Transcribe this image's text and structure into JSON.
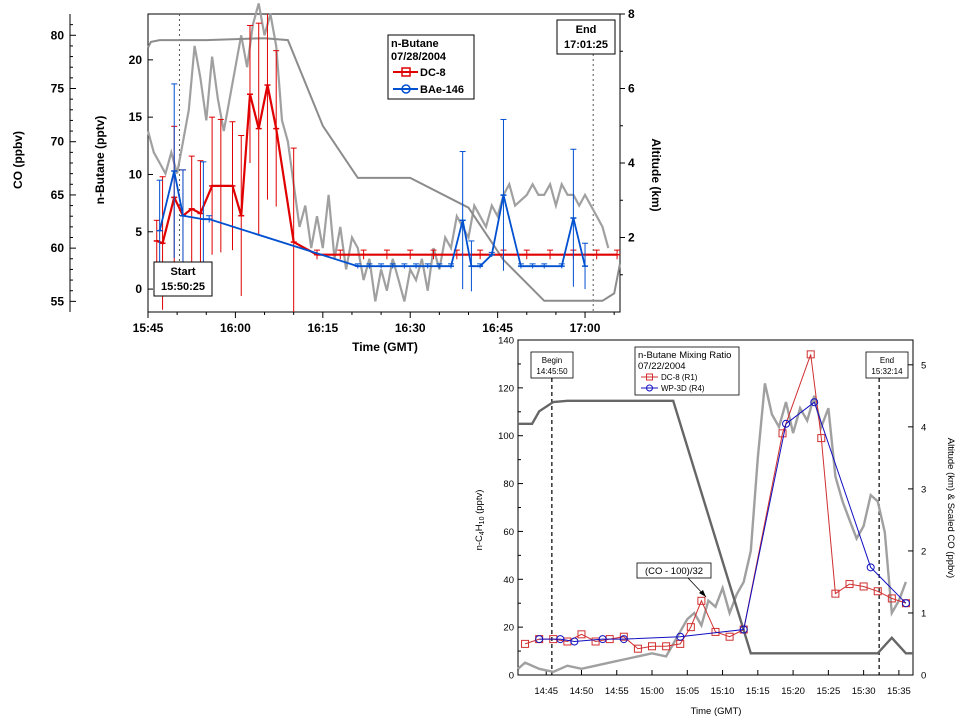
{
  "chart_data": [
    {
      "type": "line",
      "legend": {
        "title": "n-Butane",
        "date": "07/28/2004",
        "entries": [
          {
            "name": "DC-8",
            "color": "#e00000",
            "marker": "square"
          },
          {
            "name": "BAe-146",
            "color": "#0050d0",
            "marker": "circle"
          }
        ]
      },
      "xlabel": "Time (GMT)",
      "ylabel_left_outer": "CO (ppbv)",
      "ylabel_left": "n-Butane (pptv)",
      "ylabel_right": "Altitude (km)",
      "x_ticks": [
        "15:45",
        "16:00",
        "16:15",
        "16:30",
        "16:45",
        "17:00"
      ],
      "y_ticks_butane": [
        0,
        5,
        10,
        15,
        20
      ],
      "y_ticks_co": [
        55,
        60,
        65,
        70,
        75,
        80
      ],
      "y_ticks_alt": [
        2,
        4,
        6,
        8
      ],
      "xlim_min": [
        945,
        1026
      ],
      "ylim_butane": [
        -2,
        24
      ],
      "ylim_co": [
        54,
        82
      ],
      "ylim_alt": [
        0,
        8
      ],
      "annotation_start": {
        "label": "Start",
        "time": "15:50:25"
      },
      "annotation_end": {
        "label": "End",
        "time": "17:01:25"
      },
      "start_min": 950.4,
      "end_min": 1021.4,
      "series": [
        {
          "name": "DC-8",
          "color": "#e00000",
          "x": [
            946.5,
            947.5,
            949.5,
            951,
            952.5,
            954,
            956,
            957.5,
            959.5,
            961,
            962.5,
            964,
            965.5,
            967,
            970,
            974,
            978,
            982,
            986,
            990,
            994,
            998,
            1002,
            1006,
            1010,
            1014,
            1018,
            1022,
            1025.5
          ],
          "y": [
            4.2,
            4.0,
            8.0,
            6.4,
            7.0,
            6.6,
            9.0,
            9.0,
            9.0,
            6.4,
            17.0,
            14.0,
            17.8,
            14.0,
            4.1,
            3.0,
            3.0,
            3.0,
            3.0,
            3.0,
            3.0,
            3.0,
            3.0,
            3.0,
            3.0,
            3.0,
            3.0,
            3.0,
            3.0
          ],
          "err": [
            1.8,
            5.8,
            6.2,
            4.0,
            4.6,
            4.6,
            6.0,
            5.8,
            5.6,
            7.0,
            6.0,
            9.2,
            10.0,
            6.8,
            8.2,
            0.4,
            0.4,
            0.4,
            0.4,
            0.4,
            0.4,
            0.4,
            0.4,
            0.4,
            0.4,
            0.4,
            0.4,
            0.4,
            0.4
          ]
        },
        {
          "name": "BAe-146",
          "color": "#0050d0",
          "x": [
            947,
            949.5,
            951,
            954.5,
            955.5,
            981,
            983,
            985,
            987,
            989,
            991,
            993,
            995,
            997,
            999,
            1000.5,
            1002,
            1004,
            1006,
            1009,
            1011,
            1013,
            1016,
            1018,
            1020
          ],
          "y": [
            5.1,
            10.3,
            6.4,
            6.1,
            6.1,
            2.0,
            2.0,
            2.0,
            2.0,
            2.0,
            2.0,
            2.0,
            2.0,
            2.0,
            6.0,
            2.0,
            2.0,
            3.0,
            8.2,
            2.0,
            2.0,
            2.0,
            2.0,
            6.2,
            2.0
          ],
          "err": [
            4.4,
            7.6,
            4.0,
            5.0,
            0.3,
            0.2,
            0.2,
            0.2,
            0.2,
            0.2,
            0.2,
            0.2,
            0.2,
            0.2,
            6.0,
            2.2,
            0.2,
            0.2,
            6.6,
            0.2,
            0.2,
            0.2,
            0.2,
            6.0,
            2.0
          ]
        },
        {
          "name": "Altitude",
          "color": "#8c8c8c",
          "x": [
            945,
            945.5,
            947,
            955,
            965,
            969,
            975,
            981,
            990,
            1000,
            1006,
            1013,
            1020,
            1023,
            1025,
            1026
          ],
          "y": [
            7.1,
            7.25,
            7.3,
            7.3,
            7.35,
            7.3,
            5.0,
            3.6,
            3.6,
            2.8,
            1.4,
            0.3,
            0.3,
            0.3,
            0.5,
            1.3
          ]
        },
        {
          "name": "CO",
          "color": "#a0a0a0",
          "x": [
            945,
            946,
            947,
            948,
            949,
            950,
            951,
            952,
            953,
            954,
            955,
            956,
            957,
            958,
            959,
            960,
            961,
            962,
            963,
            964,
            965,
            966,
            967,
            968,
            969,
            970,
            971,
            972,
            973,
            974,
            975,
            976,
            977,
            978,
            979,
            980,
            981,
            982,
            983,
            984,
            985,
            986,
            987,
            988,
            989,
            990,
            991,
            992,
            993,
            994,
            995,
            996,
            997,
            998,
            999,
            1000,
            1001,
            1002,
            1003,
            1004,
            1005,
            1006,
            1007,
            1008,
            1010,
            1011,
            1012,
            1013,
            1014,
            1015,
            1016,
            1017,
            1018,
            1019,
            1020,
            1021,
            1022,
            1023,
            1024
          ],
          "y": [
            71,
            69,
            68,
            67,
            69,
            67,
            70,
            73,
            79,
            76,
            72,
            78,
            74,
            71,
            74,
            77,
            80,
            77,
            81,
            83,
            80,
            82,
            79,
            72,
            70,
            66,
            62,
            64,
            60,
            63,
            60,
            65,
            59,
            62,
            58,
            61,
            60,
            57,
            59,
            55,
            58,
            56,
            59,
            57,
            55,
            58,
            57,
            59,
            56,
            60,
            58,
            61,
            60,
            63,
            62,
            61,
            64,
            63,
            62,
            64,
            63,
            65,
            66,
            64,
            65,
            66,
            65,
            65,
            66,
            64,
            66,
            65,
            65,
            64,
            65,
            64,
            63,
            62,
            60
          ]
        }
      ]
    },
    {
      "type": "line",
      "legend": {
        "title": "n-Butane Mixing Ratio",
        "date": "07/22/2004",
        "entries": [
          {
            "name": "DC-8 (R1)",
            "color": "#d03030",
            "marker": "square"
          },
          {
            "name": "WP-3D (R4)",
            "color": "#1010c0",
            "marker": "circle"
          }
        ]
      },
      "xlabel": "Time (GMT)",
      "ylabel_left": "n-C4H10 (pptv)",
      "ylabel_right": "Altitude (km) & Scaled CO (ppbv)",
      "x_ticks": [
        "14:45",
        "14:50",
        "14:55",
        "15:00",
        "15:05",
        "15:10",
        "15:15",
        "15:20",
        "15:25",
        "15:30",
        "15:35"
      ],
      "y_ticks_left": [
        0,
        20,
        40,
        60,
        80,
        100,
        120,
        140
      ],
      "y_ticks_right": [
        0,
        1,
        2,
        3,
        4,
        5
      ],
      "xlim_min": [
        881,
        937
      ],
      "ylim_left": [
        0,
        140
      ],
      "ylim_right": [
        0,
        5.4
      ],
      "annotation_begin": {
        "label": "Begin",
        "time": "14:45:50"
      },
      "annotation_end": {
        "label": "End",
        "time": "15:32:14"
      },
      "annotation_co": "(CO - 100)/32",
      "begin_min": 885.8,
      "end_min": 932.2,
      "series": [
        {
          "name": "DC-8 (R1)",
          "color": "#d03030",
          "x": [
            882,
            884,
            886,
            888,
            890,
            892,
            894,
            896,
            898,
            900,
            902,
            904,
            905.5,
            907,
            909,
            911,
            913,
            918.5,
            922.5,
            924,
            926,
            928,
            930,
            932,
            934,
            936
          ],
          "y": [
            13,
            15,
            15,
            14,
            17,
            14,
            15,
            16,
            11,
            12,
            12,
            13,
            20,
            31,
            18,
            16,
            19,
            101,
            134,
            99,
            34,
            38,
            37,
            35,
            32,
            30
          ]
        },
        {
          "name": "WP-3D (R4)",
          "color": "#1010c0",
          "x": [
            884,
            887,
            889,
            893,
            896,
            904,
            913,
            919,
            923,
            931,
            936
          ],
          "y": [
            15,
            15,
            14,
            15,
            15,
            16,
            19,
            105,
            114,
            45,
            30
          ]
        },
        {
          "name": "Altitude",
          "color": "#666666",
          "x": [
            881,
            883,
            884,
            886,
            888,
            903,
            914,
            916,
            924,
            932,
            934,
            936,
            937
          ],
          "y": [
            4.05,
            4.05,
            4.25,
            4.4,
            4.42,
            4.42,
            0.35,
            0.35,
            0.35,
            0.35,
            0.6,
            0.35,
            0.35
          ]
        },
        {
          "name": "Scaled CO",
          "color": "#a0a0a0",
          "x": [
            881,
            882,
            884,
            886,
            888,
            890,
            892,
            894,
            896,
            898,
            900,
            902,
            903,
            904,
            905,
            906,
            907,
            908,
            909,
            910,
            911,
            912,
            913,
            914,
            915,
            916,
            917,
            918,
            919,
            920,
            921,
            922,
            923,
            924,
            925,
            926,
            927,
            928,
            929,
            930,
            931,
            932,
            933,
            934,
            935,
            936
          ],
          "y": [
            0.1,
            0.2,
            0.1,
            0.05,
            0.15,
            0.1,
            0.15,
            0.2,
            0.25,
            0.3,
            0.35,
            0.3,
            0.5,
            0.7,
            0.9,
            1.0,
            0.8,
            1.2,
            1.1,
            1.4,
            1.0,
            1.3,
            1.5,
            2.0,
            3.5,
            4.7,
            4.2,
            4.0,
            4.4,
            3.9,
            4.3,
            4.1,
            4.5,
            4.0,
            4.3,
            3.2,
            2.8,
            2.5,
            2.2,
            2.4,
            2.9,
            2.8,
            2.3,
            1.0,
            1.2,
            1.5
          ]
        }
      ]
    }
  ]
}
